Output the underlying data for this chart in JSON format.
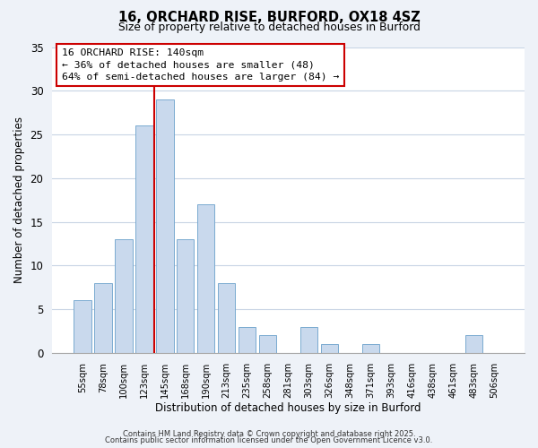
{
  "title": "16, ORCHARD RISE, BURFORD, OX18 4SZ",
  "subtitle": "Size of property relative to detached houses in Burford",
  "xlabel": "Distribution of detached houses by size in Burford",
  "ylabel": "Number of detached properties",
  "bin_labels": [
    "55sqm",
    "78sqm",
    "100sqm",
    "123sqm",
    "145sqm",
    "168sqm",
    "190sqm",
    "213sqm",
    "235sqm",
    "258sqm",
    "281sqm",
    "303sqm",
    "326sqm",
    "348sqm",
    "371sqm",
    "393sqm",
    "416sqm",
    "438sqm",
    "461sqm",
    "483sqm",
    "506sqm"
  ],
  "bar_values": [
    6,
    8,
    13,
    26,
    29,
    13,
    17,
    8,
    3,
    2,
    0,
    3,
    1,
    0,
    1,
    0,
    0,
    0,
    0,
    2,
    0
  ],
  "bar_color": "#c9d9ed",
  "bar_edge_color": "#7aaad0",
  "vline_color": "#cc0000",
  "vline_x_index": 3.5,
  "ylim": [
    0,
    35
  ],
  "yticks": [
    0,
    5,
    10,
    15,
    20,
    25,
    30,
    35
  ],
  "annotation_box_text": "16 ORCHARD RISE: 140sqm\n← 36% of detached houses are smaller (48)\n64% of semi-detached houses are larger (84) →",
  "footer_line1": "Contains HM Land Registry data © Crown copyright and database right 2025.",
  "footer_line2": "Contains public sector information licensed under the Open Government Licence v3.0.",
  "bg_color": "#eef2f8",
  "plot_bg_color": "#ffffff",
  "grid_color": "#c8d4e4"
}
